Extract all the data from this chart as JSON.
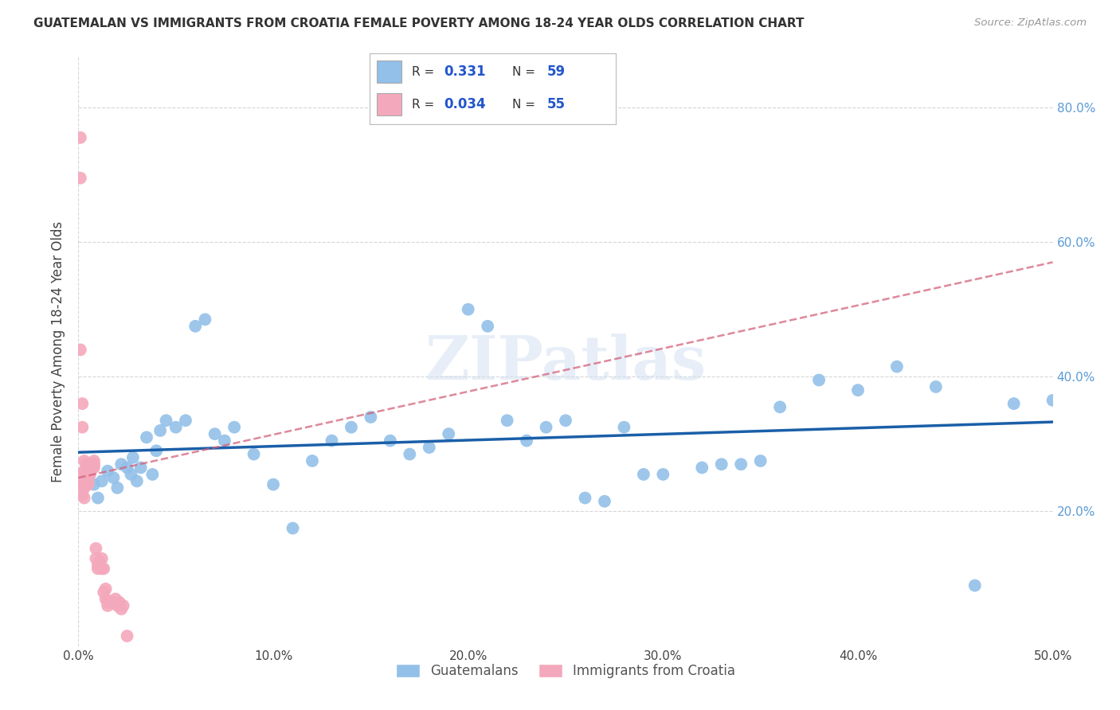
{
  "title": "GUATEMALAN VS IMMIGRANTS FROM CROATIA FEMALE POVERTY AMONG 18-24 YEAR OLDS CORRELATION CHART",
  "source": "Source: ZipAtlas.com",
  "ylabel": "Female Poverty Among 18-24 Year Olds",
  "xlim": [
    0.0,
    0.5
  ],
  "ylim": [
    0.0,
    0.875
  ],
  "xticks": [
    0.0,
    0.1,
    0.2,
    0.3,
    0.4,
    0.5
  ],
  "yticks": [
    0.0,
    0.2,
    0.4,
    0.6,
    0.8
  ],
  "xtick_labels": [
    "0.0%",
    "10.0%",
    "20.0%",
    "30.0%",
    "40.0%",
    "50.0%"
  ],
  "ytick_labels_right": [
    "",
    "20.0%",
    "40.0%",
    "60.0%",
    "80.0%"
  ],
  "blue_color": "#92c0e8",
  "pink_color": "#f4a8bb",
  "trend_blue": "#1a5fa8",
  "trend_pink_color": "#d4607a",
  "watermark": "ZIPatlas",
  "blue_R": 0.331,
  "blue_N": 59,
  "pink_R": 0.034,
  "pink_N": 55,
  "blue_x": [
    0.005,
    0.008,
    0.01,
    0.012,
    0.015,
    0.018,
    0.02,
    0.022,
    0.025,
    0.027,
    0.028,
    0.03,
    0.032,
    0.035,
    0.038,
    0.04,
    0.042,
    0.045,
    0.05,
    0.055,
    0.06,
    0.065,
    0.07,
    0.075,
    0.08,
    0.09,
    0.1,
    0.11,
    0.12,
    0.13,
    0.14,
    0.15,
    0.16,
    0.17,
    0.18,
    0.19,
    0.2,
    0.21,
    0.22,
    0.23,
    0.24,
    0.25,
    0.26,
    0.27,
    0.28,
    0.29,
    0.3,
    0.32,
    0.33,
    0.34,
    0.35,
    0.36,
    0.38,
    0.4,
    0.42,
    0.44,
    0.46,
    0.48,
    0.5
  ],
  "blue_y": [
    0.255,
    0.24,
    0.22,
    0.245,
    0.26,
    0.25,
    0.235,
    0.27,
    0.265,
    0.255,
    0.28,
    0.245,
    0.265,
    0.31,
    0.255,
    0.29,
    0.32,
    0.335,
    0.325,
    0.335,
    0.475,
    0.485,
    0.315,
    0.305,
    0.325,
    0.285,
    0.24,
    0.175,
    0.275,
    0.305,
    0.325,
    0.34,
    0.305,
    0.285,
    0.295,
    0.315,
    0.5,
    0.475,
    0.335,
    0.305,
    0.325,
    0.335,
    0.22,
    0.215,
    0.325,
    0.255,
    0.255,
    0.265,
    0.27,
    0.27,
    0.275,
    0.355,
    0.395,
    0.38,
    0.415,
    0.385,
    0.09,
    0.36,
    0.365
  ],
  "pink_x": [
    0.001,
    0.001,
    0.001,
    0.001,
    0.002,
    0.002,
    0.002,
    0.002,
    0.003,
    0.003,
    0.003,
    0.003,
    0.003,
    0.004,
    0.004,
    0.004,
    0.004,
    0.005,
    0.005,
    0.005,
    0.005,
    0.005,
    0.006,
    0.006,
    0.006,
    0.006,
    0.007,
    0.007,
    0.007,
    0.008,
    0.008,
    0.008,
    0.009,
    0.009,
    0.01,
    0.01,
    0.011,
    0.011,
    0.012,
    0.012,
    0.013,
    0.013,
    0.014,
    0.014,
    0.015,
    0.015,
    0.016,
    0.017,
    0.018,
    0.019,
    0.02,
    0.021,
    0.022,
    0.023,
    0.025
  ],
  "pink_y": [
    0.755,
    0.695,
    0.44,
    0.255,
    0.36,
    0.325,
    0.24,
    0.225,
    0.275,
    0.26,
    0.245,
    0.235,
    0.22,
    0.27,
    0.26,
    0.255,
    0.255,
    0.26,
    0.255,
    0.25,
    0.24,
    0.245,
    0.265,
    0.255,
    0.26,
    0.27,
    0.27,
    0.265,
    0.265,
    0.275,
    0.265,
    0.27,
    0.145,
    0.13,
    0.115,
    0.12,
    0.12,
    0.125,
    0.13,
    0.115,
    0.115,
    0.08,
    0.085,
    0.07,
    0.065,
    0.06,
    0.065,
    0.065,
    0.065,
    0.07,
    0.06,
    0.065,
    0.055,
    0.06,
    0.015
  ],
  "grid_color": "#cccccc",
  "title_fontsize": 11,
  "tick_fontsize": 11,
  "ylabel_fontsize": 12
}
